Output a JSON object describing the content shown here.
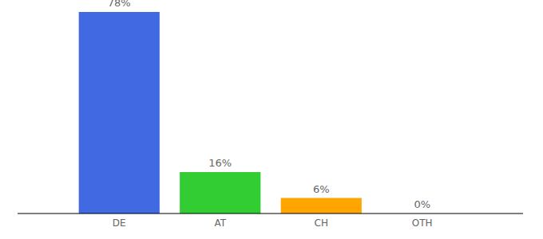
{
  "chart_data": {
    "type": "bar",
    "categories": [
      "DE",
      "AT",
      "CH",
      "OTH"
    ],
    "values": [
      78,
      16,
      6,
      0
    ],
    "value_labels": [
      "78%",
      "16%",
      "6%",
      "0%"
    ],
    "colors": [
      "#4169e1",
      "#32cd32",
      "#ffa500",
      "#d3d3d3"
    ],
    "data_labels": true,
    "tick_labels": "x",
    "grid": false
  }
}
